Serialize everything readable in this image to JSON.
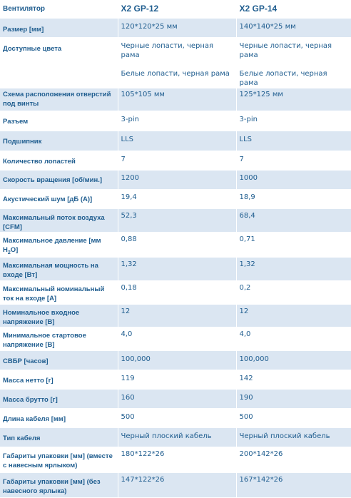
{
  "header": {
    "feature": "Вентилятор",
    "model1": "X2 GP-12",
    "model2": "X2 GP-14"
  },
  "rows": [
    {
      "label": "Размер [мм]",
      "v1": "120*120*25 мм",
      "v2": "140*140*25 мм"
    },
    {
      "label": "Доступные цвета",
      "v1": "Черные лопасти, черная рама",
      "v1b": "Белые лопасти, черная рама",
      "v2": "Черные лопасти, черная рама",
      "v2b": "Белые лопасти, черная рама"
    },
    {
      "label": "Схема расположения отверстий под винты",
      "v1": "105*105 мм",
      "v2": "125*125 мм"
    },
    {
      "label": "Разъем",
      "v1": "3-pin",
      "v2": "3-pin"
    },
    {
      "label": "Подшипник",
      "v1": "LLS",
      "v2": "LLS"
    },
    {
      "label": "Количество лопастей",
      "v1": "7",
      "v2": "7"
    },
    {
      "label": "Скорость вращения [об/мин.]",
      "v1": "1200",
      "v2": "1000"
    },
    {
      "label": "Акустический шум [дБ (А)]",
      "v1": "19,4",
      "v2": "18,9"
    },
    {
      "label": "Максимальный поток воздуха [CFM]",
      "v1": "52,3",
      "v2": "68,4"
    },
    {
      "label": "Максимальное давление [мм H",
      "label_sub": "2",
      "label_tail": "O]",
      "v1": "0,88",
      "v2": "0,71"
    },
    {
      "label": "Максимальная мощность на входе [Вт]",
      "v1": "1,32",
      "v2": "1,32"
    },
    {
      "label": "Максимальный номинальный ток на входе [A]",
      "v1": "0,18",
      "v2": "0,2"
    },
    {
      "label": "Номинальное входное напряжение [В]",
      "v1": "12",
      "v2": "12"
    },
    {
      "label": "Минимальное стартовое напряжение [В]",
      "v1": "4,0",
      "v2": "4,0"
    },
    {
      "label": "СВБР [часов]",
      "v1": "100,000",
      "v2": "100,000"
    },
    {
      "label": "Масса нетто [г]",
      "v1": "119",
      "v2": "142"
    },
    {
      "label": "Масса брутто [г]",
      "v1": "160",
      "v2": "190"
    },
    {
      "label": "Длина кабеля [мм]",
      "v1": "500",
      "v2": "500"
    },
    {
      "label": "Тип кабеля",
      "v1": "Черный плоский кабель",
      "v2": "Черный плоский кабель"
    },
    {
      "label": "Габариты упаковки [мм] (вместе с навесным ярлыком)",
      "v1": "180*122*26",
      "v2": "200*142*26"
    },
    {
      "label": "Габариты упаковки [мм] (без навесного ярлыка)",
      "v1": "147*122*26",
      "v2": "167*142*26"
    }
  ],
  "colors": {
    "header_text": "#1f5d8f",
    "row_stripe": "#dbe6f2"
  }
}
